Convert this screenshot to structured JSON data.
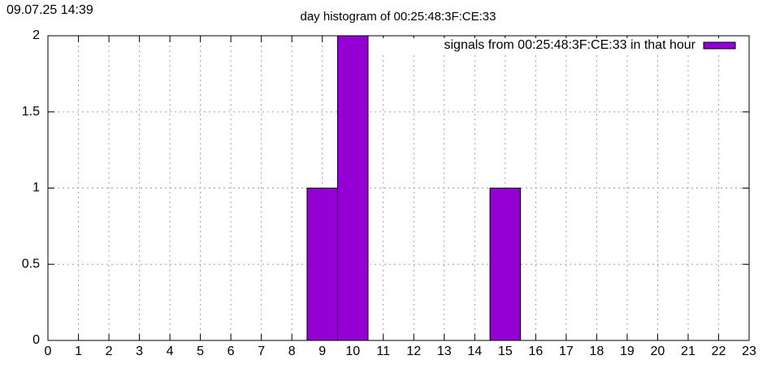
{
  "chart_data": {
    "type": "bar",
    "timestamp": "09.07.25 14:39",
    "title": "day histogram of 00:25:48:3F:CE:33",
    "x": [
      0,
      1,
      2,
      3,
      4,
      5,
      6,
      7,
      8,
      9,
      10,
      11,
      12,
      13,
      14,
      15,
      16,
      17,
      18,
      19,
      20,
      21,
      22,
      23
    ],
    "series": [
      {
        "name": "signals from 00:25:48:3F:CE:33 in that hour",
        "color": "#9400d3",
        "values": [
          0,
          0,
          0,
          0,
          0,
          0,
          0,
          0,
          0,
          1,
          2,
          0,
          0,
          0,
          0,
          1,
          0,
          0,
          0,
          0,
          0,
          0,
          0,
          0
        ]
      }
    ],
    "xlim": [
      0,
      23
    ],
    "xticks": [
      0,
      1,
      2,
      3,
      4,
      5,
      6,
      7,
      8,
      9,
      10,
      11,
      12,
      13,
      14,
      15,
      16,
      17,
      18,
      19,
      20,
      21,
      22,
      23
    ],
    "ylim": [
      0,
      2
    ],
    "yticks": [
      0,
      0.5,
      1,
      1.5,
      2
    ],
    "grid": true,
    "legend": "top-right"
  }
}
